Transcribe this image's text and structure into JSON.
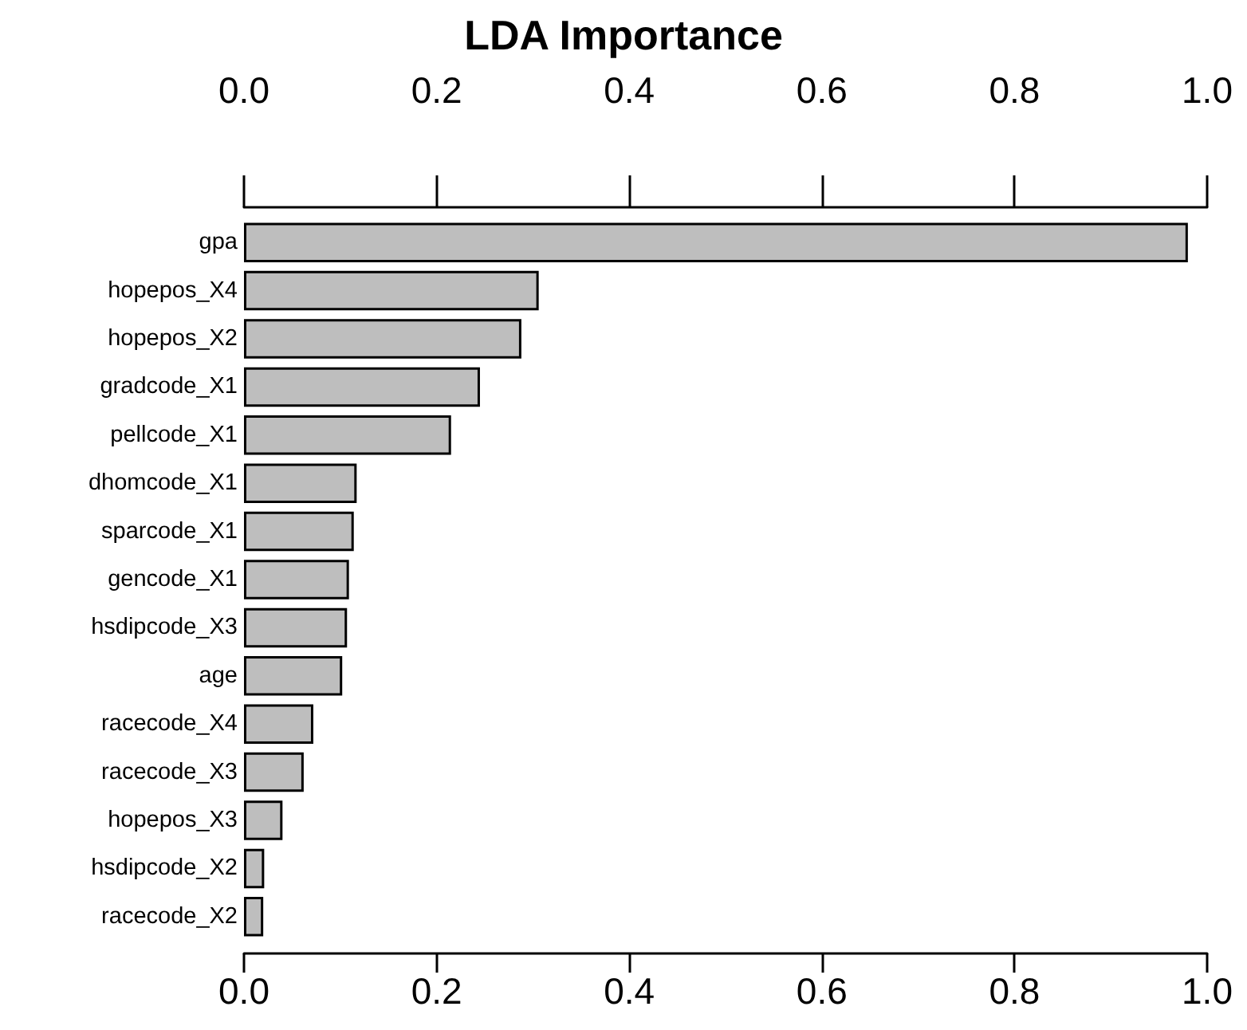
{
  "chart_data": {
    "type": "bar",
    "orientation": "horizontal",
    "title": "LDA Importance",
    "categories": [
      "gpa",
      "hopepos_X4",
      "hopepos_X2",
      "gradcode_X1",
      "pellcode_X1",
      "dhomcode_X1",
      "sparcode_X1",
      "gencode_X1",
      "hsdipcode_X3",
      "age",
      "racecode_X4",
      "racecode_X3",
      "hopepos_X3",
      "hsdipcode_X2",
      "racecode_X2"
    ],
    "values": [
      0.98,
      0.306,
      0.288,
      0.245,
      0.215,
      0.117,
      0.114,
      0.109,
      0.107,
      0.102,
      0.072,
      0.062,
      0.04,
      0.021,
      0.02
    ],
    "color": "#bebebe",
    "xlim": [
      0,
      1
    ],
    "xticks": [
      {
        "value": 0,
        "label": "0.0"
      },
      {
        "value": 0.2,
        "label": "0.2"
      },
      {
        "value": 0.4,
        "label": "0.4"
      },
      {
        "value": 0.6,
        "label": "0.6"
      },
      {
        "value": 0.8,
        "label": "0.8"
      },
      {
        "value": 1,
        "label": "1.0"
      }
    ],
    "x2lim": [
      0,
      1
    ],
    "x2ticks": [
      {
        "value": 0,
        "label": "0.0"
      },
      {
        "value": 0.2,
        "label": "0.2"
      },
      {
        "value": 0.4,
        "label": "0.4"
      },
      {
        "value": 0.6,
        "label": "0.6"
      },
      {
        "value": 0.8,
        "label": "0.8"
      },
      {
        "value": 1,
        "label": "1.0"
      }
    ],
    "grid": false
  }
}
